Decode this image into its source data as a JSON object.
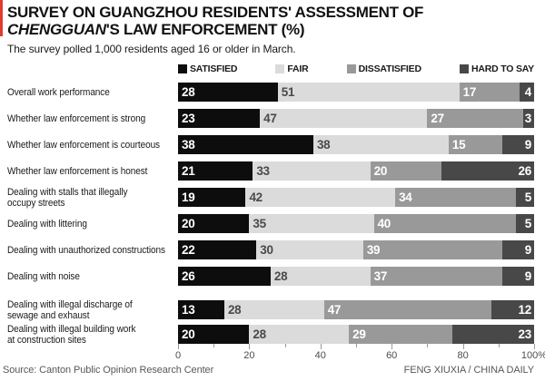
{
  "accent_color": "#e43a2c",
  "header": {
    "title_line1": "SURVEY ON GUANGZHOU RESIDENTS' ASSESSMENT OF",
    "title_line2_italic": "CHENGGUAN",
    "title_line2_rest": "'S LAW ENFORCEMENT (%)",
    "subtitle": "The survey polled 1,000 residents aged 16 or older in March."
  },
  "chart_data": {
    "type": "bar",
    "orientation": "horizontal",
    "stacked": true,
    "title": "Survey on Guangzhou residents' assessment of Chengguan's law enforcement (%)",
    "legend_position": "top",
    "categories": [
      "Overall work performance",
      "Whether law enforcement is strong",
      "Whether law enforcement is courteous",
      "Whether law enforcement is honest",
      "Dealing with stalls that illegally\noccupy streets",
      "Dealing with littering",
      "Dealing with unauthorized constructions",
      "Dealing with noise",
      "Dealing with illegal discharge of\nsewage and exhaust",
      "Dealing with illegal building work\nat construction sites"
    ],
    "series": [
      {
        "name": "SATISFIED",
        "color": "#0d0d0d",
        "label_color": "#ffffff",
        "values": [
          28,
          23,
          38,
          21,
          19,
          20,
          22,
          26,
          13,
          20
        ]
      },
      {
        "name": "FAIR",
        "color": "#dbdbdb",
        "label_color": "#4a4a4a",
        "values": [
          51,
          47,
          38,
          33,
          42,
          35,
          30,
          28,
          28,
          28
        ]
      },
      {
        "name": "DISSATISFIED",
        "color": "#999999",
        "label_color": "#ffffff",
        "values": [
          17,
          27,
          15,
          20,
          34,
          40,
          39,
          37,
          47,
          29
        ]
      },
      {
        "name": "HARD TO SAY",
        "color": "#484848",
        "label_color": "#ffffff",
        "values": [
          4,
          3,
          9,
          26,
          5,
          5,
          9,
          9,
          12,
          23
        ]
      }
    ],
    "xlim": [
      0,
      100
    ],
    "x_major_ticks": [
      0,
      20,
      40,
      60,
      80,
      100
    ],
    "x_major_tick_labels": [
      "0",
      "20",
      "40",
      "60",
      "80",
      "100%"
    ],
    "x_minor_ticks": [
      10,
      30,
      50,
      70,
      90
    ],
    "grid": false
  },
  "footer": {
    "source": "Source: Canton Public Opinion Research Center",
    "credit": "FENG XIUXIA / CHINA DAILY"
  }
}
